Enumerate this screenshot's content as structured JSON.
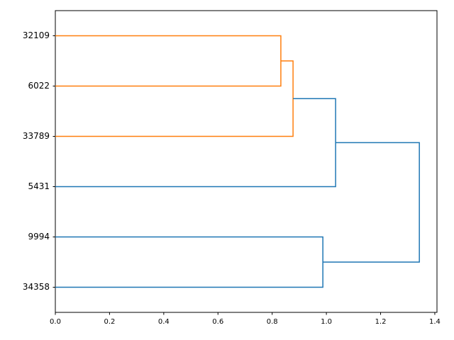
{
  "chart_data": {
    "type": "dendrogram",
    "leaves": [
      "32109",
      "6022",
      "33789",
      "5431",
      "9994",
      "34358"
    ],
    "merges": [
      {
        "children": [
          0,
          1
        ],
        "height": 0.832,
        "color": "#ff7f0e"
      },
      {
        "children": [
          6,
          2
        ],
        "height": 0.877,
        "color": "#ff7f0e"
      },
      {
        "children": [
          7,
          3
        ],
        "height": 1.034,
        "color": "#1f77b4"
      },
      {
        "children": [
          4,
          5
        ],
        "height": 0.987,
        "color": "#1f77b4"
      },
      {
        "children": [
          8,
          9
        ],
        "height": 1.343,
        "color": "#1f77b4"
      }
    ],
    "xlim": [
      0,
      1.408
    ],
    "xticks": [
      {
        "value": 0,
        "label": "0.0"
      },
      {
        "value": 0.2,
        "label": "0.2"
      },
      {
        "value": 0.4,
        "label": "0.4"
      },
      {
        "value": 0.6,
        "label": "0.6"
      },
      {
        "value": 0.8,
        "label": "0.8"
      },
      {
        "value": 1,
        "label": "1.0"
      },
      {
        "value": 1.2,
        "label": "1.2"
      },
      {
        "value": 1.4,
        "label": "1.4"
      }
    ]
  }
}
